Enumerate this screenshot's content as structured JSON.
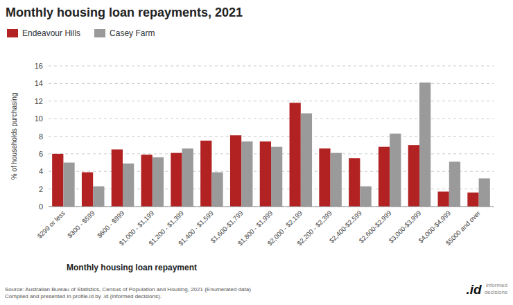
{
  "chart_data": {
    "type": "bar",
    "title": "Monthly housing loan repayments, 2021",
    "xlabel": "Monthly housing loan repayment",
    "ylabel": "% of households purchasing",
    "categories": [
      "$299 or less",
      "$300 - $599",
      "$600 - $999",
      "$1,000 - $1,199",
      "$1,200 - $1,399",
      "$1,400 - $1,599",
      "$1,600-$1,799",
      "$1,800 - $1,999",
      "$2,000 - $2,199",
      "$2,200 - $2,399",
      "$2,400-$2,599",
      "$2,600-$2,999",
      "$3,000-$3,999",
      "$4,000-$4,999",
      "$5000 and over"
    ],
    "series": [
      {
        "name": "Endeavour Hills",
        "color": "#b22222",
        "values": [
          6.0,
          3.9,
          6.5,
          5.9,
          6.1,
          7.5,
          8.1,
          7.4,
          11.8,
          6.6,
          5.5,
          6.8,
          7.0,
          1.7,
          1.6
        ]
      },
      {
        "name": "Casey Farm",
        "color": "#9a9a9a",
        "values": [
          5.0,
          2.3,
          4.9,
          5.6,
          6.6,
          3.9,
          7.4,
          6.8,
          10.6,
          6.1,
          2.3,
          8.3,
          14.1,
          5.1,
          3.2
        ]
      }
    ],
    "ylim": [
      0,
      16
    ],
    "yticks": [
      0,
      2,
      4,
      6,
      8,
      10,
      12,
      14,
      16
    ],
    "grid": true,
    "legend": "upper left",
    "annotations": [
      "Source: Australian Bureau of Statistics, Census of Population and Housing, 2021 (Enumerated data)\nCompiled and presented in profile.id by .id (informed decisions).",
      ".id",
      "informed\ndecisions"
    ]
  }
}
